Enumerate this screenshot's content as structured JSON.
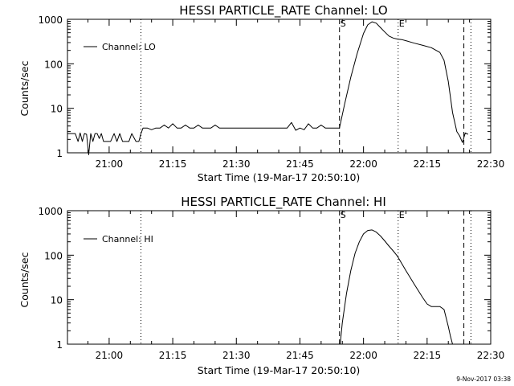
{
  "chart_data": [
    {
      "type": "line",
      "title": "HESSI PARTICLE_RATE Channel: LO",
      "xlabel": "Start Time (19-Mar-17 20:50:10)",
      "ylabel": "Counts/sec",
      "yscale": "log",
      "ylim": [
        1,
        1000
      ],
      "xlim": [
        "20:50:10",
        "22:30"
      ],
      "x_ticks": [
        "21:00",
        "21:15",
        "21:30",
        "21:45",
        "22:00",
        "22:15",
        "22:30"
      ],
      "y_ticks": [
        "1",
        "10",
        "100",
        "1000"
      ],
      "legend": {
        "label": "Channel: LO",
        "position": "top-left"
      },
      "markers": [
        {
          "time": "21:07:30",
          "style": "dotted",
          "label": ""
        },
        {
          "time": "21:54:20",
          "style": "dashed",
          "label": "S"
        },
        {
          "time": "22:08:10",
          "style": "dotted",
          "label": "E"
        },
        {
          "time": "22:23:40",
          "style": "dashed",
          "label": ""
        },
        {
          "time": "22:25:20",
          "style": "dotted",
          "label": ""
        }
      ],
      "series": [
        {
          "x": [
            "20:50:10",
            "20:51:10",
            "20:52:00",
            "20:52:40",
            "20:53:10",
            "20:53:40",
            "20:54:10",
            "20:54:40",
            "20:55:10",
            "20:55:40",
            "20:56:10",
            "20:56:40",
            "20:57:10",
            "20:57:40",
            "20:58:10",
            "20:58:40",
            "20:59:20",
            "21:00:20",
            "21:01:10",
            "21:01:50",
            "21:02:30",
            "21:03:10",
            "21:03:50",
            "21:04:40",
            "21:05:20",
            "21:06:20",
            "21:07:00",
            "21:07:30",
            "21:08:00",
            "21:09:00",
            "21:10:00",
            "21:11:00",
            "21:12:00",
            "21:13:00",
            "21:14:00",
            "21:15:00",
            "21:16:00",
            "21:17:00",
            "21:18:00",
            "21:19:00",
            "21:20:00",
            "21:21:00",
            "21:22:00",
            "21:23:00",
            "21:24:00",
            "21:25:00",
            "21:26:00",
            "21:27:00",
            "21:28:00",
            "21:29:00",
            "21:30:00",
            "21:32:00",
            "21:34:00",
            "21:36:00",
            "21:38:00",
            "21:40:00",
            "21:41:00",
            "21:42:00",
            "21:43:00",
            "21:44:00",
            "21:45:00",
            "21:46:00",
            "21:47:00",
            "21:48:00",
            "21:49:00",
            "21:50:00",
            "21:51:00",
            "21:52:00",
            "21:53:00",
            "21:54:20",
            "21:55:30",
            "21:57:00",
            "21:58:30",
            "22:00:00",
            "22:01:00",
            "22:02:00",
            "22:03:00",
            "22:04:00",
            "22:05:00",
            "22:06:00",
            "22:07:00",
            "22:08:00",
            "22:09:00",
            "22:10:00",
            "22:12:00",
            "22:14:00",
            "22:16:00",
            "22:18:00",
            "22:19:00",
            "22:20:00",
            "22:21:00",
            "22:22:00",
            "22:22:40",
            "22:23:20",
            "22:24:00",
            "22:24:40"
          ],
          "y": [
            2.7,
            2.7,
            2.7,
            1.8,
            2.8,
            1.8,
            2.7,
            2.6,
            0.9,
            2.7,
            1.8,
            2.7,
            2.7,
            2.1,
            2.7,
            1.8,
            1.8,
            1.8,
            2.7,
            1.8,
            2.7,
            1.8,
            1.8,
            1.8,
            2.7,
            1.8,
            1.8,
            2.7,
            3.6,
            3.6,
            3.3,
            3.6,
            3.6,
            4.2,
            3.6,
            4.5,
            3.6,
            3.6,
            4.2,
            3.6,
            3.6,
            4.2,
            3.6,
            3.6,
            3.6,
            4.2,
            3.6,
            3.6,
            3.6,
            3.6,
            3.6,
            3.6,
            3.6,
            3.6,
            3.6,
            3.6,
            3.6,
            3.6,
            4.8,
            3.2,
            3.6,
            3.3,
            4.5,
            3.6,
            3.6,
            4.2,
            3.6,
            3.6,
            3.6,
            3.6,
            12,
            50,
            170,
            480,
            750,
            880,
            820,
            650,
            520,
            420,
            380,
            360,
            350,
            330,
            290,
            260,
            230,
            180,
            120,
            40,
            8,
            3,
            2.4,
            1.7,
            2.8,
            2.6
          ]
        }
      ]
    },
    {
      "type": "line",
      "title": "HESSI PARTICLE_RATE Channel: HI",
      "xlabel": "Start Time (19-Mar-17 20:50:10)",
      "ylabel": "Counts/sec",
      "yscale": "log",
      "ylim": [
        1,
        1000
      ],
      "xlim": [
        "20:50:10",
        "22:30"
      ],
      "x_ticks": [
        "21:00",
        "21:15",
        "21:30",
        "21:45",
        "22:00",
        "22:15",
        "22:30"
      ],
      "y_ticks": [
        "1",
        "10",
        "100",
        "1000"
      ],
      "legend": {
        "label": "Channel: HI",
        "position": "top-left"
      },
      "markers": [
        {
          "time": "21:07:30",
          "style": "dotted",
          "label": ""
        },
        {
          "time": "21:54:20",
          "style": "dashed",
          "label": "S"
        },
        {
          "time": "22:08:10",
          "style": "dotted",
          "label": "E"
        },
        {
          "time": "22:23:40",
          "style": "dashed",
          "label": ""
        },
        {
          "time": "22:25:20",
          "style": "dotted",
          "label": ""
        }
      ],
      "series": [
        {
          "x": [
            "21:54:30",
            "21:55:00",
            "21:56:00",
            "21:57:00",
            "21:58:00",
            "21:59:00",
            "22:00:00",
            "22:01:00",
            "22:02:00",
            "22:03:00",
            "22:04:00",
            "22:05:00",
            "22:06:00",
            "22:07:00",
            "22:08:00",
            "22:10:00",
            "22:12:00",
            "22:14:00",
            "22:15:00",
            "22:16:00",
            "22:17:00",
            "22:18:00",
            "22:19:00",
            "22:20:00",
            "22:20:30",
            "22:21:00"
          ],
          "y": [
            1,
            3,
            14,
            45,
            110,
            200,
            300,
            360,
            370,
            330,
            270,
            210,
            160,
            125,
            95,
            45,
            22,
            11,
            8,
            7,
            7,
            7,
            6,
            2.5,
            1.5,
            1
          ]
        }
      ]
    }
  ],
  "footer": {
    "timestamp": "9-Nov-2017 03:38"
  }
}
